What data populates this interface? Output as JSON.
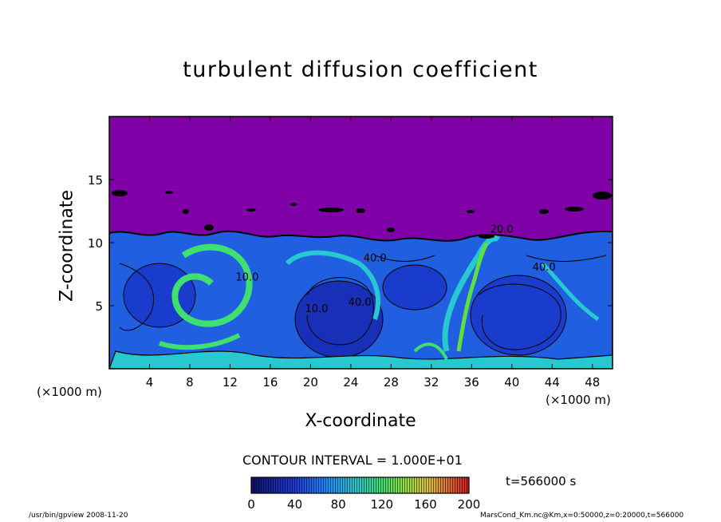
{
  "title": "turbulent diffusion coefficient",
  "x_unit": "(×1000 m)",
  "x_label": "X-coordinate",
  "y_label": "Z-coordinate",
  "contour_interval_text": "CONTOUR INTERVAL = 1.000E+01",
  "time_text": "t=566000 s",
  "footer_left": "/usr/bin/gpview   2008-11-20",
  "footer_right": "MarsCond_Km.nc@Km,x=0:50000,z=0:20000,t=566000",
  "colors": {
    "background_field": "#8000a8",
    "low": "#1a1aa0",
    "mid_low": "#1e78ff",
    "mid": "#28c8d0",
    "mid_high": "#50e060",
    "high": "#e02020"
  },
  "chart_data": {
    "type": "heatmap",
    "title": "turbulent diffusion coefficient",
    "xlabel": "X-coordinate",
    "ylabel": "Z-coordinate",
    "xlim": [
      0,
      50
    ],
    "ylim": [
      0,
      20
    ],
    "x_ticks": [
      4,
      8,
      12,
      16,
      20,
      24,
      28,
      32,
      36,
      40,
      44,
      48
    ],
    "y_ticks": [
      5,
      10,
      15
    ],
    "contour_interval": 10,
    "contour_labels": [
      {
        "x": 13.7,
        "z": 7.0,
        "text": "10.0"
      },
      {
        "x": 20.6,
        "z": 4.5,
        "text": "10.0"
      },
      {
        "x": 24.9,
        "z": 5.0,
        "text": "40.0"
      },
      {
        "x": 26.4,
        "z": 8.5,
        "text": "40.0"
      },
      {
        "x": 39.0,
        "z": 10.8,
        "text": "20.0"
      },
      {
        "x": 43.2,
        "z": 7.8,
        "text": "40.0"
      }
    ],
    "colorbar": {
      "min": 0,
      "max": 200,
      "ticks": [
        0,
        40,
        80,
        120,
        160,
        200
      ]
    },
    "time": 566000
  }
}
